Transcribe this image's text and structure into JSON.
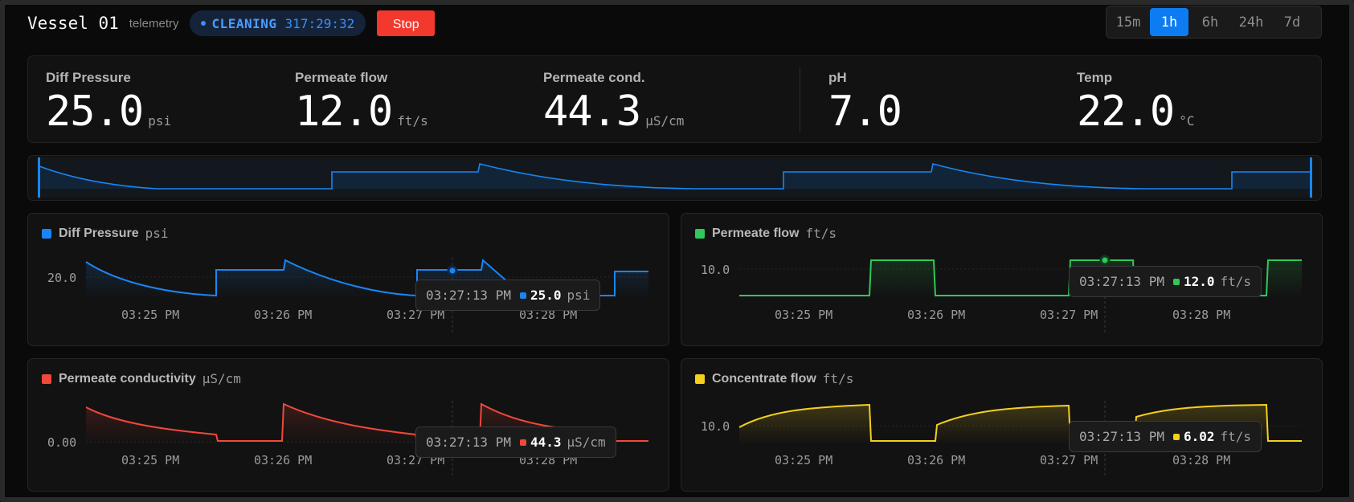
{
  "header": {
    "title": "Vessel 01",
    "subtitle": "telemetry",
    "status_label": "CLEANING",
    "status_time": "317:29:32",
    "stop_label": "Stop"
  },
  "ranges": [
    {
      "label": "15m",
      "active": false
    },
    {
      "label": "1h",
      "active": true
    },
    {
      "label": "6h",
      "active": false
    },
    {
      "label": "24h",
      "active": false
    },
    {
      "label": "7d",
      "active": false
    }
  ],
  "metrics": [
    {
      "label": "Diff Pressure",
      "value": "25.0",
      "unit": "psi"
    },
    {
      "label": "Permeate flow",
      "value": "12.0",
      "unit": "ft/s"
    },
    {
      "label": "Permeate cond.",
      "value": "44.3",
      "unit": "µS/cm"
    },
    {
      "label": "pH",
      "value": "7.0",
      "unit": ""
    },
    {
      "label": "Temp",
      "value": "22.0",
      "unit": "°C"
    }
  ],
  "colors": {
    "pressure": "#1a86f5",
    "flow": "#30c85a",
    "conductivity": "#f0483a",
    "concentrate": "#f5cf1c"
  },
  "panels": {
    "pressure": {
      "title": "Diff Pressure",
      "unit": "psi",
      "ytick": "20.0",
      "xticks": [
        "03:25 PM",
        "03:26 PM",
        "03:27 PM",
        "03:28 PM"
      ],
      "tooltip": {
        "time": "03:27:13 PM",
        "value": "25.0",
        "unit": "psi"
      }
    },
    "flow": {
      "title": "Permeate flow",
      "unit": "ft/s",
      "ytick": "10.0",
      "xticks": [
        "03:25 PM",
        "03:26 PM",
        "03:27 PM",
        "03:28 PM"
      ],
      "tooltip": {
        "time": "03:27:13 PM",
        "value": "12.0",
        "unit": "ft/s"
      }
    },
    "conductivity": {
      "title": "Permeate conductivity",
      "unit": "µS/cm",
      "ytick": "0.00",
      "xticks": [
        "03:25 PM",
        "03:26 PM",
        "03:27 PM",
        "03:28 PM"
      ],
      "tooltip": {
        "time": "03:27:13 PM",
        "value": "44.3",
        "unit": "µS/cm"
      }
    },
    "concentrate": {
      "title": "Concentrate flow",
      "unit": "ft/s",
      "ytick": "10.0",
      "xticks": [
        "03:25 PM",
        "03:26 PM",
        "03:27 PM",
        "03:28 PM"
      ],
      "tooltip": {
        "time": "03:27:13 PM",
        "value": "6.02",
        "unit": "ft/s"
      }
    }
  }
}
